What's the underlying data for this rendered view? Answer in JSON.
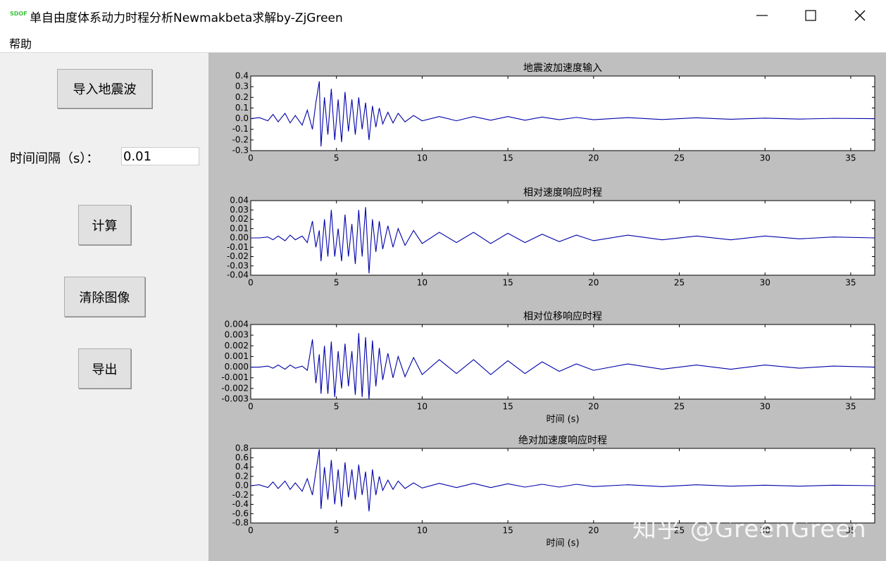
{
  "window": {
    "icon_text": "SDOF",
    "title": "单自由度体系动力时程分析Newmakbeta求解by-ZjGreen"
  },
  "menu": [
    "帮助"
  ],
  "panel": {
    "import_button": "导入地震波",
    "interval_label": "时间间隔（s）：",
    "interval_value": "0.01",
    "compute_button": "计算",
    "clear_button": "清除图像",
    "export_button": "导出"
  },
  "watermark": "知乎 @GreenGreen",
  "chart_data": [
    {
      "type": "line",
      "title": "地震波加速度输入",
      "color": "#0000aa",
      "x": [
        0,
        0.5,
        1,
        1.3,
        1.6,
        2,
        2.3,
        2.6,
        3,
        3.3,
        3.6,
        3.8,
        4.0,
        4.1,
        4.3,
        4.5,
        4.7,
        4.9,
        5.1,
        5.3,
        5.5,
        5.7,
        5.9,
        6.1,
        6.3,
        6.5,
        6.7,
        6.9,
        7.1,
        7.3,
        7.5,
        7.7,
        8.0,
        8.3,
        8.6,
        9,
        9.5,
        10,
        11,
        12,
        13,
        14,
        15,
        16,
        17,
        18,
        19,
        20,
        22,
        24,
        26,
        28,
        30,
        32,
        34,
        36.4
      ],
      "values": [
        0,
        0.01,
        -0.02,
        0.04,
        -0.03,
        0.05,
        -0.04,
        0.03,
        -0.06,
        0.08,
        -0.1,
        0.15,
        0.35,
        -0.26,
        0.2,
        -0.15,
        0.28,
        -0.2,
        0.18,
        -0.22,
        0.25,
        -0.12,
        0.18,
        -0.15,
        0.2,
        -0.1,
        0.15,
        -0.2,
        0.12,
        -0.08,
        0.1,
        -0.05,
        0.06,
        -0.04,
        0.05,
        -0.03,
        0.03,
        -0.02,
        0.02,
        -0.02,
        0.02,
        -0.015,
        0.02,
        -0.015,
        0.015,
        -0.01,
        0.012,
        -0.01,
        0.01,
        -0.008,
        0.008,
        -0.006,
        0.005,
        -0.004,
        0.003,
        0
      ],
      "xlim": [
        0,
        36.4
      ],
      "ylim": [
        -0.3,
        0.4
      ],
      "xticks": [
        0,
        5,
        10,
        15,
        20,
        25,
        30,
        35
      ],
      "yticks": [
        -0.3,
        -0.2,
        -0.1,
        {
          "value": 0,
          "label": "0.0"
        },
        0.1,
        0.2,
        0.3,
        0.4
      ]
    },
    {
      "type": "line",
      "title": "相对速度响应时程",
      "color": "#0000aa",
      "x": [
        0,
        0.5,
        1,
        1.3,
        1.6,
        2,
        2.3,
        2.6,
        3,
        3.3,
        3.6,
        3.8,
        4.0,
        4.1,
        4.3,
        4.5,
        4.7,
        4.9,
        5.1,
        5.3,
        5.5,
        5.7,
        5.9,
        6.1,
        6.3,
        6.5,
        6.7,
        6.9,
        7.1,
        7.3,
        7.5,
        7.7,
        8.0,
        8.3,
        8.6,
        9,
        9.5,
        10,
        11,
        12,
        13,
        14,
        15,
        16,
        17,
        18,
        19,
        20,
        22,
        24,
        26,
        28,
        30,
        32,
        34,
        36.4
      ],
      "values": [
        0,
        0,
        0.001,
        -0.002,
        0.002,
        -0.003,
        0.003,
        -0.002,
        0.002,
        -0.005,
        0.018,
        -0.01,
        0.008,
        -0.025,
        0.02,
        -0.02,
        0.03,
        -0.02,
        0.01,
        -0.025,
        0.025,
        -0.02,
        0.015,
        -0.028,
        0.03,
        -0.02,
        0.033,
        -0.038,
        0.02,
        -0.015,
        0.018,
        -0.012,
        0.013,
        -0.01,
        0.01,
        -0.008,
        0.008,
        -0.006,
        0.006,
        -0.005,
        0.006,
        -0.006,
        0.005,
        -0.005,
        0.004,
        -0.004,
        0.003,
        -0.003,
        0.003,
        -0.002,
        0.002,
        -0.002,
        0.002,
        -0.001,
        0.001,
        0
      ],
      "xlim": [
        0,
        36.4
      ],
      "ylim": [
        -0.04,
        0.04
      ],
      "xticks": [
        0,
        5,
        10,
        15,
        20,
        25,
        30,
        35
      ],
      "yticks": [
        -0.04,
        -0.03,
        -0.02,
        -0.01,
        {
          "value": 0,
          "label": "0.00"
        },
        0.01,
        0.02,
        0.03,
        0.04
      ]
    },
    {
      "type": "line",
      "title": "相对位移响应时程",
      "xlabel": "时间 (s)",
      "color": "#0000aa",
      "x": [
        0,
        0.5,
        1,
        1.3,
        1.6,
        2,
        2.3,
        2.6,
        3,
        3.3,
        3.6,
        3.8,
        4.0,
        4.1,
        4.3,
        4.5,
        4.7,
        4.9,
        5.1,
        5.3,
        5.5,
        5.7,
        5.9,
        6.1,
        6.3,
        6.5,
        6.7,
        6.9,
        7.1,
        7.3,
        7.5,
        7.7,
        8.0,
        8.3,
        8.6,
        9,
        9.5,
        10,
        11,
        12,
        13,
        14,
        15,
        16,
        17,
        18,
        19,
        20,
        22,
        24,
        26,
        28,
        30,
        32,
        34,
        36.4
      ],
      "values": [
        0,
        0,
        0.0001,
        -0.0001,
        0.0002,
        -0.0002,
        0.0002,
        -0.0001,
        0.0001,
        -0.0003,
        0.0026,
        -0.0015,
        0.0012,
        -0.0025,
        0.002,
        -0.0025,
        0.0024,
        -0.0028,
        0.0015,
        -0.002,
        0.0022,
        -0.0018,
        0.0015,
        -0.0026,
        0.0032,
        -0.0028,
        0.0028,
        -0.003,
        0.0025,
        -0.0018,
        0.0018,
        -0.0012,
        0.0013,
        -0.001,
        0.001,
        -0.0009,
        0.0009,
        -0.0007,
        0.0007,
        -0.0006,
        0.0007,
        -0.0007,
        0.0006,
        -0.0006,
        0.0005,
        -0.0004,
        0.0003,
        -0.0003,
        0.0003,
        -0.0002,
        0.0002,
        -0.0002,
        0.0002,
        -0.0001,
        0.0001,
        0
      ],
      "xlim": [
        0,
        36.4
      ],
      "ylim": [
        -0.003,
        0.004
      ],
      "xticks": [
        0,
        5,
        10,
        15,
        20,
        25,
        30,
        35
      ],
      "yticks": [
        -0.003,
        -0.002,
        -0.001,
        {
          "value": 0,
          "label": "0.000"
        },
        0.001,
        0.002,
        0.003,
        0.004
      ]
    },
    {
      "type": "line",
      "title": "绝对加速度响应时程",
      "xlabel": "时间 (s)",
      "color": "#0000aa",
      "x": [
        0,
        0.5,
        1,
        1.3,
        1.6,
        2,
        2.3,
        2.6,
        3,
        3.3,
        3.6,
        3.8,
        4.0,
        4.1,
        4.3,
        4.5,
        4.7,
        4.9,
        5.1,
        5.3,
        5.5,
        5.7,
        5.9,
        6.1,
        6.3,
        6.5,
        6.7,
        6.9,
        7.1,
        7.3,
        7.5,
        7.7,
        8.0,
        8.3,
        8.6,
        9,
        9.5,
        10,
        11,
        12,
        13,
        14,
        15,
        16,
        17,
        18,
        19,
        20,
        22,
        24,
        26,
        28,
        30,
        32,
        34,
        36.4
      ],
      "values": [
        0,
        0.02,
        -0.04,
        0.08,
        -0.06,
        0.1,
        -0.08,
        0.06,
        -0.12,
        0.15,
        -0.2,
        0.3,
        0.78,
        -0.5,
        0.4,
        -0.3,
        0.55,
        -0.4,
        0.35,
        -0.45,
        0.5,
        -0.25,
        0.35,
        -0.3,
        0.45,
        -0.2,
        0.3,
        -0.55,
        0.35,
        -0.2,
        0.2,
        -0.1,
        0.12,
        -0.08,
        0.1,
        -0.06,
        0.06,
        -0.05,
        0.05,
        -0.04,
        0.05,
        -0.04,
        0.04,
        -0.03,
        0.03,
        -0.03,
        0.03,
        -0.02,
        0.02,
        -0.02,
        0.02,
        -0.01,
        0.01,
        -0.01,
        0.01,
        0
      ],
      "xlim": [
        0,
        36.4
      ],
      "ylim": [
        -0.8,
        0.8
      ],
      "xticks": [
        0,
        5,
        10,
        15,
        20,
        25,
        30,
        35
      ],
      "yticks": [
        -0.8,
        -0.6,
        -0.4,
        -0.2,
        {
          "value": 0,
          "label": "0.0"
        },
        0.2,
        0.4,
        0.6,
        0.8
      ]
    }
  ]
}
